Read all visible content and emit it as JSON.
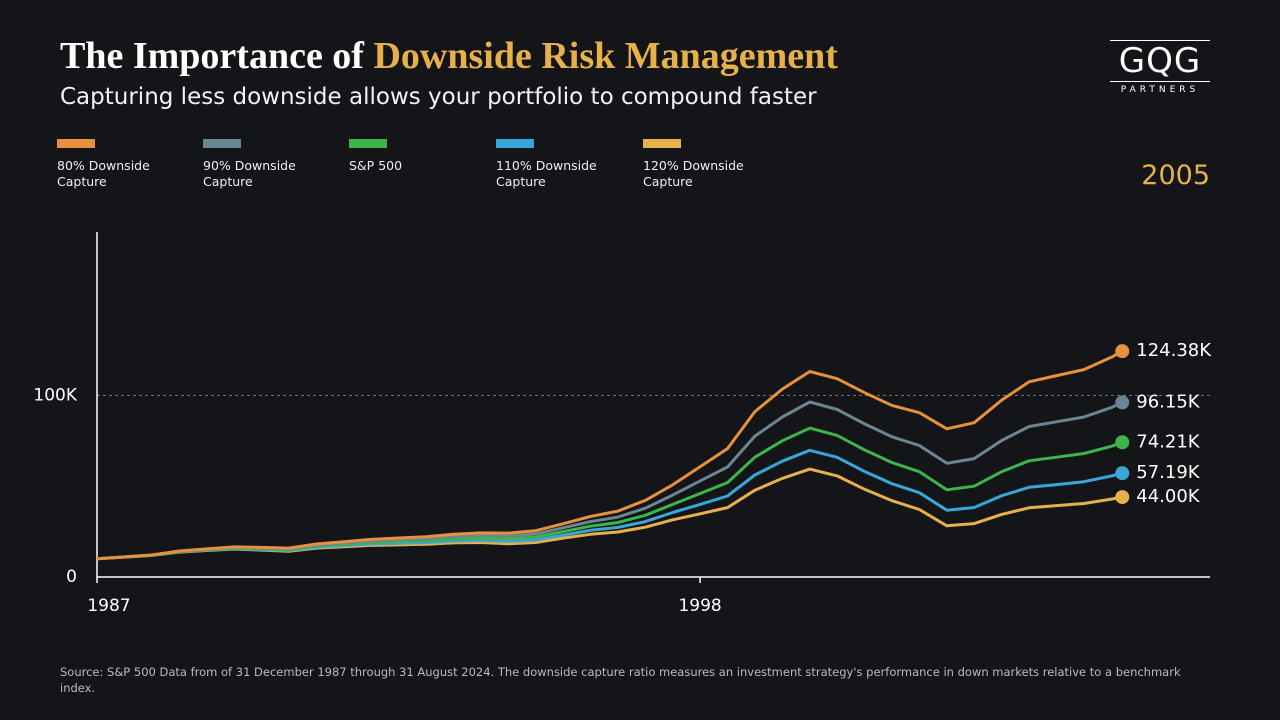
{
  "chart_data": {
    "type": "line",
    "title_part1": "The Importance of",
    "title_highlight": "Downside Risk Management",
    "subtitle": "Capturing less downside allows your portfolio to compound faster",
    "logo": "GQG",
    "logo_sub": "PARTNERS",
    "year_label": "2005",
    "source": "Source: S&P 500 Data from of 31 December 1987 through 31 August 2024. The downside capture ratio measures an investment strategy's performance in down markets relative to a benchmark index.",
    "x": [
      1987,
      1987.5,
      1988,
      1988.5,
      1989,
      1989.5,
      1990,
      1990.5,
      1991,
      1991.5,
      1992,
      1992.5,
      1993,
      1993.5,
      1994,
      1994.5,
      1995,
      1995.5,
      1996,
      1996.5,
      1997,
      1997.5,
      1998,
      1998.5,
      1999,
      1999.5,
      2000,
      2000.5,
      2001,
      2001.5,
      2002,
      2002.5,
      2003,
      2003.5,
      2004,
      2004.5,
      2005,
      2005.5,
      2005.7
    ],
    "xlim": [
      1987,
      2007.3
    ],
    "xticks": [
      1987,
      1998
    ],
    "ylim": [
      0,
      190000
    ],
    "yticks": [
      0,
      {
        "value": 100000,
        "label": "100K"
      }
    ],
    "grid": true,
    "series": [
      {
        "name": "80% Downside Capture",
        "color": "#e8903c",
        "values": [
          10000,
          11000,
          12100,
          14300,
          15500,
          16600,
          16300,
          15900,
          18200,
          19400,
          20700,
          21500,
          22200,
          23500,
          24300,
          24200,
          25500,
          29300,
          33300,
          36300,
          42200,
          50800,
          60700,
          70700,
          91100,
          103500,
          113200,
          109200,
          101500,
          94500,
          90500,
          81600,
          85000,
          97400,
          107500,
          110900,
          114200,
          121000,
          124380
        ],
        "value_labels": [
          null,
          null,
          null,
          null,
          null,
          null,
          null,
          null,
          null,
          null,
          null,
          null,
          null,
          null,
          null,
          null,
          null,
          null,
          null,
          null,
          null,
          null,
          null,
          null,
          null,
          null,
          null,
          null,
          null,
          null,
          null,
          null,
          null,
          null,
          null,
          null,
          null,
          null,
          "124.38K"
        ]
      },
      {
        "name": "90% Downside Capture",
        "color": "#6b8593",
        "values": [
          10000,
          11000,
          12100,
          14100,
          15200,
          16300,
          15900,
          15500,
          17600,
          18700,
          19800,
          20500,
          21100,
          22200,
          22900,
          22500,
          23700,
          27100,
          30500,
          33000,
          37900,
          45100,
          52900,
          60600,
          77600,
          88100,
          96400,
          92300,
          84300,
          77200,
          72400,
          62600,
          65200,
          75200,
          82900,
          85500,
          88100,
          93300,
          96150
        ],
        "value_labels": [
          null,
          null,
          null,
          null,
          null,
          null,
          null,
          null,
          null,
          null,
          null,
          null,
          null,
          null,
          null,
          null,
          null,
          null,
          null,
          null,
          null,
          null,
          null,
          null,
          null,
          null,
          null,
          null,
          null,
          null,
          null,
          null,
          null,
          null,
          null,
          null,
          null,
          null,
          "96.15K"
        ]
      },
      {
        "name": "S&P 500",
        "color": "#3db54a",
        "values": [
          10000,
          11000,
          12000,
          14000,
          15000,
          16000,
          15500,
          15000,
          17000,
          18000,
          19000,
          19500,
          20000,
          21000,
          21500,
          21000,
          22000,
          25000,
          28000,
          30000,
          34000,
          40000,
          46000,
          52000,
          66000,
          75000,
          82000,
          78000,
          70000,
          63000,
          58000,
          48000,
          50000,
          58000,
          64000,
          66000,
          68000,
          72000,
          74210
        ],
        "value_labels": [
          null,
          null,
          null,
          null,
          null,
          null,
          null,
          null,
          null,
          null,
          null,
          null,
          null,
          null,
          null,
          null,
          null,
          null,
          null,
          null,
          null,
          null,
          null,
          null,
          null,
          null,
          null,
          null,
          null,
          null,
          null,
          null,
          null,
          null,
          null,
          null,
          null,
          null,
          "74.21K"
        ]
      },
      {
        "name": "110% Downside Capture",
        "color": "#3aa6d8",
        "values": [
          10000,
          11000,
          11900,
          13900,
          14800,
          15700,
          15100,
          14600,
          16400,
          17300,
          18200,
          18600,
          19000,
          19800,
          20200,
          19600,
          20400,
          23100,
          25700,
          27300,
          30500,
          35500,
          40000,
          44600,
          56200,
          63800,
          69800,
          65900,
          58100,
          51400,
          46400,
          36800,
          38300,
          44800,
          49400,
          50900,
          52500,
          55600,
          57190
        ],
        "value_labels": [
          null,
          null,
          null,
          null,
          null,
          null,
          null,
          null,
          null,
          null,
          null,
          null,
          null,
          null,
          null,
          null,
          null,
          null,
          null,
          null,
          null,
          null,
          null,
          null,
          null,
          null,
          null,
          null,
          null,
          null,
          null,
          null,
          null,
          null,
          null,
          null,
          null,
          null,
          "57.19K"
        ]
      },
      {
        "name": "120% Downside Capture",
        "color": "#e8b04a",
        "values": [
          10000,
          11000,
          11900,
          13700,
          14600,
          15400,
          14800,
          14200,
          15900,
          16700,
          17400,
          17700,
          18000,
          18800,
          19000,
          18300,
          19000,
          21400,
          23500,
          24800,
          27400,
          31500,
          34800,
          38200,
          47800,
          54300,
          59400,
          55700,
          48300,
          42000,
          37200,
          28200,
          29400,
          34500,
          38100,
          39300,
          40500,
          42900,
          44000
        ],
        "value_labels": [
          null,
          null,
          null,
          null,
          null,
          null,
          null,
          null,
          null,
          null,
          null,
          null,
          null,
          null,
          null,
          null,
          null,
          null,
          null,
          null,
          null,
          null,
          null,
          null,
          null,
          null,
          null,
          null,
          null,
          null,
          null,
          null,
          null,
          null,
          null,
          null,
          null,
          null,
          "44.00K"
        ]
      }
    ]
  }
}
